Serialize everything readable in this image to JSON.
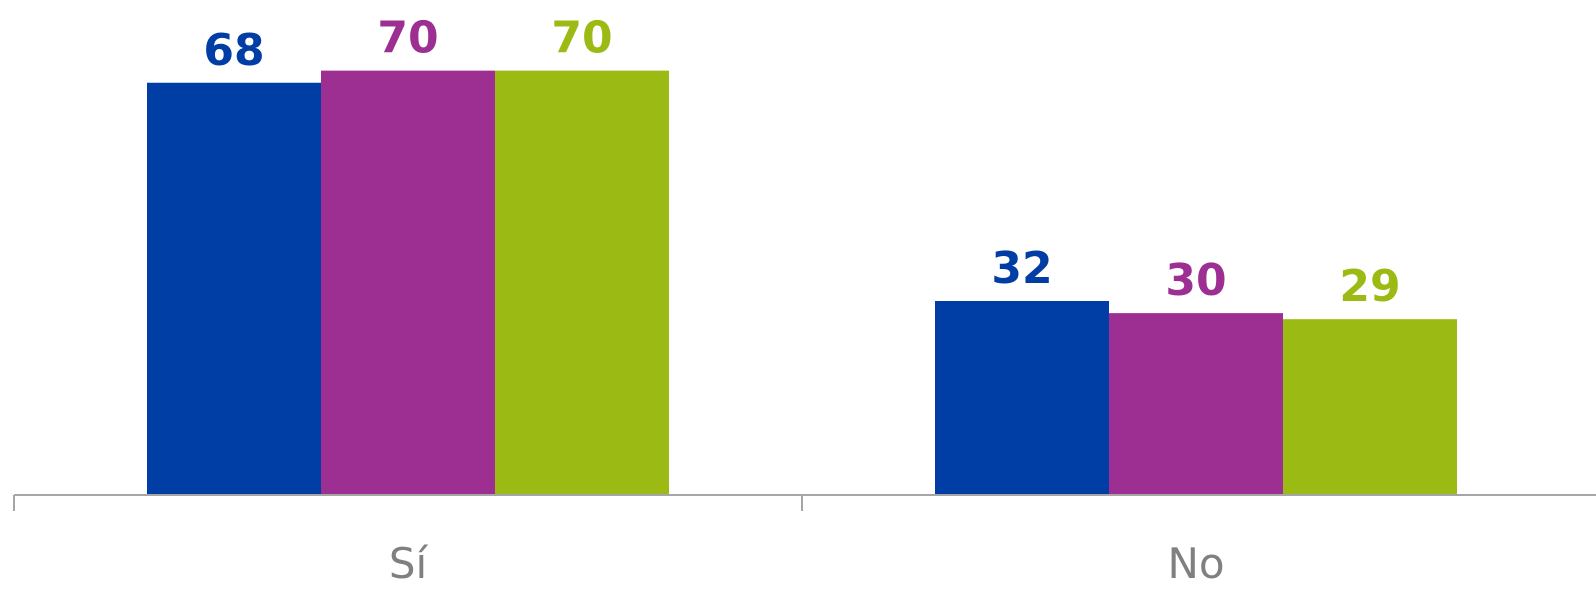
{
  "chart_data": {
    "type": "bar",
    "categories": [
      "Sí",
      "No"
    ],
    "series": [
      {
        "values": [
          68,
          32
        ],
        "color": "#003DA5"
      },
      {
        "values": [
          70,
          30
        ],
        "color": "#9E2F92"
      },
      {
        "values": [
          70,
          29
        ],
        "color": "#9BBB14"
      }
    ],
    "ylim": [
      0,
      80
    ],
    "grid": false,
    "legend": "none",
    "data_labels": true
  }
}
